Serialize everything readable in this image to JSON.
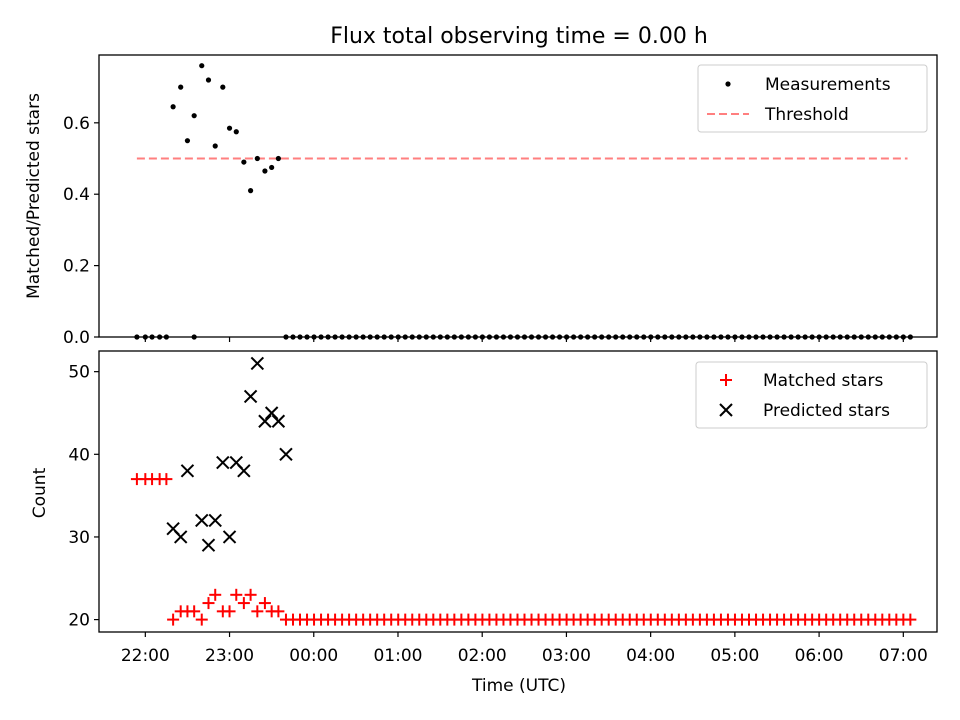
{
  "figure": {
    "title": "Flux total observing time = 0.00 h",
    "xlabel": "Time (UTC)"
  },
  "x_ticks": [
    "22:00",
    "23:00",
    "00:00",
    "01:00",
    "02:00",
    "03:00",
    "04:00",
    "05:00",
    "06:00",
    "07:00"
  ],
  "colors": {
    "threshold": "#ff7f7f",
    "matched": "#ff0000",
    "predicted": "#000000",
    "measurements": "#000000"
  },
  "chart_data": [
    {
      "type": "scatter",
      "panel": "top",
      "ylabel": "Matched/Predicted stars",
      "ylim": [
        0,
        0.79
      ],
      "y_ticks": [
        0.0,
        0.2,
        0.4,
        0.6
      ],
      "x_axis": "time of night in hours, 22:00 = 0",
      "xlim": [
        -0.55,
        9.4
      ],
      "legend": "top-right",
      "series": [
        {
          "name": "Measurements",
          "marker": "dot",
          "x": [
            -0.1,
            0.0,
            0.08,
            0.17,
            0.25,
            0.58,
            0.33,
            0.42,
            0.5,
            0.58,
            0.67,
            0.75,
            0.83,
            0.92,
            1.0,
            1.08,
            1.17,
            1.25,
            1.33,
            1.42,
            1.5,
            1.58
          ],
          "y": [
            0.0,
            0.0,
            0.0,
            0.0,
            0.0,
            0.0,
            0.645,
            0.7,
            0.55,
            0.62,
            0.76,
            0.72,
            0.535,
            0.7,
            0.585,
            0.575,
            0.49,
            0.41,
            0.5,
            0.465,
            0.475,
            0.5
          ]
        },
        {
          "name": "Measurements (zero values)",
          "marker": "dot",
          "x_start": 1.67,
          "x_end": 9.15,
          "x_step": 0.0833,
          "y": 0.0
        },
        {
          "name": "Threshold",
          "style": "dashed",
          "x": [
            -0.1,
            9.05
          ],
          "y": [
            0.5,
            0.5
          ]
        }
      ]
    },
    {
      "type": "scatter",
      "panel": "bottom",
      "ylabel": "Count",
      "ylim": [
        18.5,
        52.5
      ],
      "y_ticks": [
        20,
        30,
        40,
        50
      ],
      "xlim": [
        -0.55,
        9.4
      ],
      "legend": "top-right",
      "series": [
        {
          "name": "Matched stars",
          "marker": "plus",
          "x": [
            -0.1,
            0.0,
            0.08,
            0.17,
            0.25,
            0.33,
            0.42,
            0.5,
            0.58,
            0.67,
            0.75,
            0.83,
            0.92,
            1.0,
            1.08,
            1.17,
            1.25,
            1.33,
            1.42,
            1.5,
            1.58
          ],
          "y": [
            37,
            37,
            37,
            37,
            37,
            20,
            21,
            21,
            21,
            20,
            22,
            23,
            21,
            21,
            23,
            22,
            23,
            21,
            22,
            21,
            21
          ]
        },
        {
          "name": "Matched stars (baseline)",
          "marker": "plus",
          "x_start": 1.67,
          "x_end": 9.15,
          "x_step": 0.0833,
          "y": 20
        },
        {
          "name": "Predicted stars",
          "marker": "x",
          "x": [
            0.33,
            0.42,
            0.5,
            0.67,
            0.75,
            0.83,
            0.92,
            1.0,
            1.08,
            1.17,
            1.25,
            1.33,
            1.42,
            1.5,
            1.58,
            1.67
          ],
          "y": [
            31,
            30,
            38,
            32,
            29,
            32,
            39,
            30,
            39,
            38,
            47,
            51,
            44,
            45,
            44,
            40
          ]
        }
      ]
    }
  ]
}
